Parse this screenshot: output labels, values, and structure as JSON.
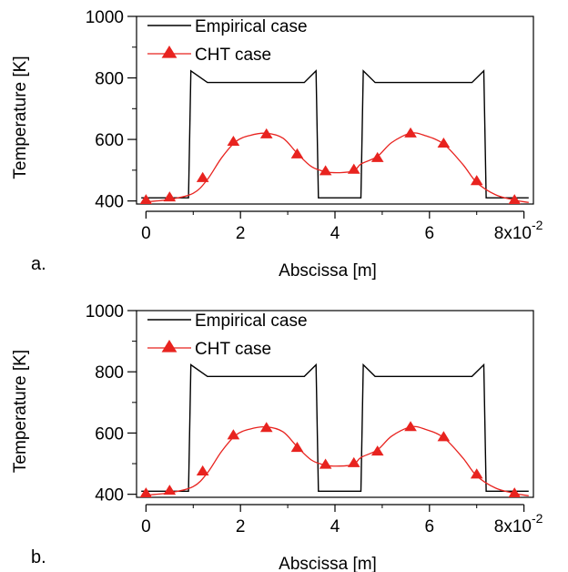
{
  "chart_data": [
    {
      "type": "line",
      "panel_label": "a.",
      "xlabel": "Abscissa [m]",
      "ylabel": "Temperature [K]",
      "x_scale_label": "8x10",
      "x_scale_exp": "-2",
      "xlim": [
        -0.2,
        8.2
      ],
      "ylim": [
        390,
        1000
      ],
      "xticks": [
        0,
        2,
        4,
        6
      ],
      "yticks": [
        400,
        600,
        800,
        1000
      ],
      "grid": false,
      "legend_position": "top-left",
      "series": [
        {
          "name": "Empirical case",
          "color": "#000000",
          "marker": "none",
          "x": [
            -0.1,
            0.9,
            0.95,
            1.3,
            3.35,
            3.6,
            3.65,
            4.55,
            4.6,
            4.85,
            6.9,
            7.15,
            7.2,
            8.1
          ],
          "y": [
            410,
            410,
            823,
            785,
            785,
            823,
            410,
            410,
            823,
            785,
            785,
            823,
            410,
            410
          ]
        },
        {
          "name": "CHT case",
          "color": "#e8231f",
          "marker": "triangle",
          "x": [
            0.0,
            0.5,
            1.0,
            1.3,
            1.6,
            1.9,
            2.2,
            2.55,
            2.9,
            3.2,
            3.5,
            3.8,
            4.1,
            4.4,
            4.55,
            4.9,
            5.2,
            5.6,
            5.9,
            6.3,
            6.7,
            7.0,
            7.4,
            7.8,
            8.1
          ],
          "y": [
            397,
            405,
            425,
            470,
            540,
            593,
            613,
            620,
            604,
            555,
            512,
            495,
            492,
            498,
            520,
            545,
            590,
            620,
            613,
            585,
            520,
            460,
            420,
            403,
            395
          ],
          "marker_x": [
            0.0,
            0.5,
            1.2,
            1.85,
            2.55,
            3.2,
            3.8,
            4.4,
            4.9,
            5.6,
            6.3,
            7.0,
            7.8
          ],
          "marker_y": [
            403,
            412,
            475,
            593,
            617,
            552,
            497,
            502,
            540,
            620,
            587,
            465,
            403
          ]
        }
      ]
    },
    {
      "type": "line",
      "panel_label": "b.",
      "xlabel": "Abscissa [m]",
      "ylabel": "Temperature [K]",
      "x_scale_label": "8x10",
      "x_scale_exp": "-2",
      "xlim": [
        -0.2,
        8.2
      ],
      "ylim": [
        390,
        1000
      ],
      "xticks": [
        0,
        2,
        4,
        6
      ],
      "yticks": [
        400,
        600,
        800,
        1000
      ],
      "grid": false,
      "legend_position": "top-left",
      "series": [
        {
          "name": "Empirical case",
          "color": "#000000",
          "marker": "none",
          "x": [
            -0.1,
            0.9,
            0.95,
            1.3,
            3.35,
            3.6,
            3.65,
            4.55,
            4.6,
            4.85,
            6.9,
            7.15,
            7.2,
            8.1
          ],
          "y": [
            410,
            410,
            823,
            785,
            785,
            823,
            410,
            410,
            823,
            785,
            785,
            823,
            410,
            410
          ]
        },
        {
          "name": "CHT case",
          "color": "#e8231f",
          "marker": "triangle",
          "x": [
            0.0,
            0.5,
            1.0,
            1.3,
            1.6,
            1.9,
            2.2,
            2.55,
            2.9,
            3.2,
            3.5,
            3.8,
            4.1,
            4.4,
            4.55,
            4.9,
            5.2,
            5.6,
            5.9,
            6.3,
            6.7,
            7.0,
            7.4,
            7.8,
            8.1
          ],
          "y": [
            397,
            405,
            425,
            470,
            540,
            593,
            613,
            620,
            604,
            555,
            512,
            495,
            492,
            498,
            520,
            545,
            590,
            620,
            613,
            585,
            520,
            460,
            420,
            403,
            395
          ],
          "marker_x": [
            0.0,
            0.5,
            1.2,
            1.85,
            2.55,
            3.2,
            3.8,
            4.4,
            4.9,
            5.6,
            6.3,
            7.0,
            7.8
          ],
          "marker_y": [
            403,
            412,
            475,
            593,
            617,
            552,
            497,
            502,
            540,
            620,
            587,
            465,
            403
          ]
        }
      ]
    }
  ]
}
